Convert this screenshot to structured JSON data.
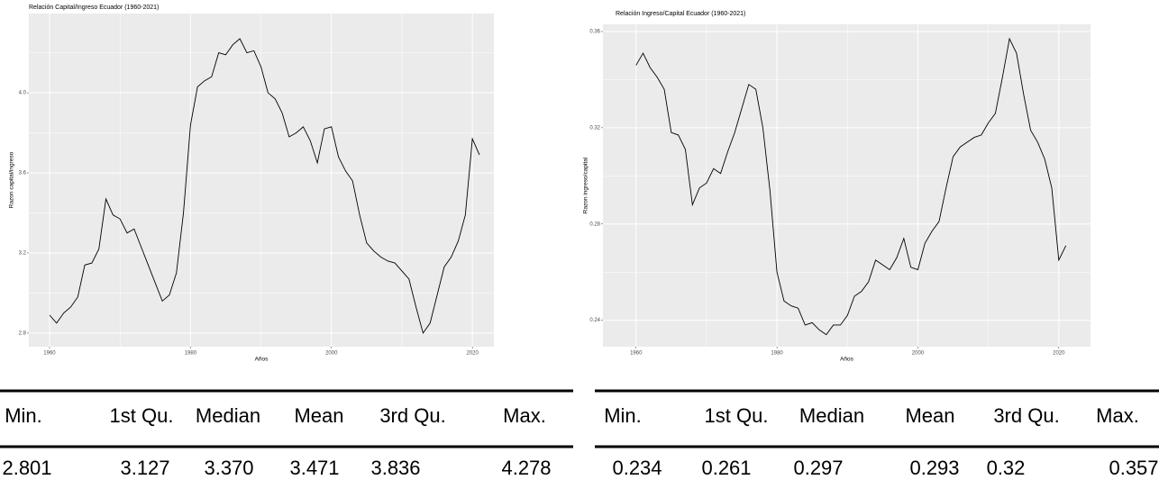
{
  "chart_data": [
    {
      "type": "line",
      "title": "Relación Capital/Ingreso Ecuador (1960-2021)",
      "x_label": "Años",
      "y_label": "Razon capital/ingreso",
      "color": "#000000",
      "grid": true,
      "x": [
        1960,
        1961,
        1962,
        1963,
        1964,
        1965,
        1966,
        1967,
        1968,
        1969,
        1970,
        1971,
        1972,
        1973,
        1974,
        1975,
        1976,
        1977,
        1978,
        1979,
        1980,
        1981,
        1982,
        1983,
        1984,
        1985,
        1986,
        1987,
        1988,
        1989,
        1990,
        1991,
        1992,
        1993,
        1994,
        1995,
        1996,
        1997,
        1998,
        1999,
        2000,
        2001,
        2002,
        2003,
        2004,
        2005,
        2006,
        2007,
        2008,
        2009,
        2010,
        2011,
        2012,
        2013,
        2014,
        2015,
        2016,
        2017,
        2018,
        2019,
        2020,
        2021
      ],
      "values": [
        2.89,
        2.85,
        2.9,
        2.93,
        2.98,
        3.14,
        3.15,
        3.22,
        3.47,
        3.39,
        3.37,
        3.3,
        3.32,
        3.23,
        3.14,
        3.05,
        2.96,
        2.99,
        3.1,
        3.4,
        3.84,
        4.03,
        4.06,
        4.08,
        4.2,
        4.19,
        4.24,
        4.27,
        4.2,
        4.21,
        4.13,
        4.0,
        3.97,
        3.9,
        3.78,
        3.8,
        3.83,
        3.76,
        3.65,
        3.82,
        3.83,
        3.68,
        3.61,
        3.56,
        3.39,
        3.25,
        3.21,
        3.18,
        3.16,
        3.15,
        3.11,
        3.07,
        2.93,
        2.8,
        2.85,
        2.99,
        3.13,
        3.18,
        3.26,
        3.39,
        3.77,
        3.69
      ],
      "xlim": [
        1957.06,
        2023.05
      ],
      "xticks": [
        1960,
        1980,
        2000,
        2020
      ],
      "ylim": [
        2.732,
        4.396
      ],
      "yticks": [
        2.8,
        3.2,
        3.6,
        {
          "value": 4,
          "label": "4.0"
        }
      ]
    },
    {
      "type": "line",
      "title": "Relación Ingreso/Capital Ecuador (1960-2021)",
      "x_label": "Años",
      "y_label": "Razon ingreso/capital",
      "color": "#000000",
      "grid": true,
      "x": [
        1960,
        1961,
        1962,
        1963,
        1964,
        1965,
        1966,
        1967,
        1968,
        1969,
        1970,
        1971,
        1972,
        1973,
        1974,
        1975,
        1976,
        1977,
        1978,
        1979,
        1980,
        1981,
        1982,
        1983,
        1984,
        1985,
        1986,
        1987,
        1988,
        1989,
        1990,
        1991,
        1992,
        1993,
        1994,
        1995,
        1996,
        1997,
        1998,
        1999,
        2000,
        2001,
        2002,
        2003,
        2004,
        2005,
        2006,
        2007,
        2008,
        2009,
        2010,
        2011,
        2012,
        2013,
        2014,
        2015,
        2016,
        2017,
        2018,
        2019,
        2020,
        2021
      ],
      "values": [
        0.346,
        0.351,
        0.345,
        0.341,
        0.336,
        0.318,
        0.317,
        0.311,
        0.288,
        0.295,
        0.297,
        0.303,
        0.301,
        0.31,
        0.318,
        0.328,
        0.338,
        0.336,
        0.32,
        0.294,
        0.26,
        0.248,
        0.246,
        0.245,
        0.238,
        0.239,
        0.236,
        0.234,
        0.238,
        0.238,
        0.242,
        0.25,
        0.252,
        0.256,
        0.265,
        0.263,
        0.261,
        0.266,
        0.274,
        0.262,
        0.261,
        0.272,
        0.277,
        0.281,
        0.295,
        0.308,
        0.312,
        0.314,
        0.316,
        0.317,
        0.322,
        0.326,
        0.341,
        0.357,
        0.351,
        0.334,
        0.319,
        0.314,
        0.307,
        0.295,
        0.265,
        0.271
      ],
      "xlim": [
        1955.3,
        2024.5
      ],
      "xticks": [
        1960,
        1980,
        2000,
        2020
      ],
      "ylim": [
        0.229,
        0.363
      ],
      "yticks": [
        0.24,
        0.28,
        0.32,
        0.36
      ]
    }
  ],
  "tables": [
    {
      "header": [
        "Min.",
        "1st Qu.",
        "Median",
        "Mean",
        "3rd Qu.",
        "Max."
      ],
      "row": [
        "2.801",
        "3.127",
        "3.370",
        "3.471",
        "3.836",
        "4.278"
      ]
    },
    {
      "header": [
        "Min.",
        "1st Qu.",
        "Median",
        "Mean",
        "3rd Qu.",
        "Max."
      ],
      "row": [
        "0.234",
        "0.261",
        "0.297",
        "0.293",
        "0.32",
        "0.357"
      ]
    }
  ]
}
